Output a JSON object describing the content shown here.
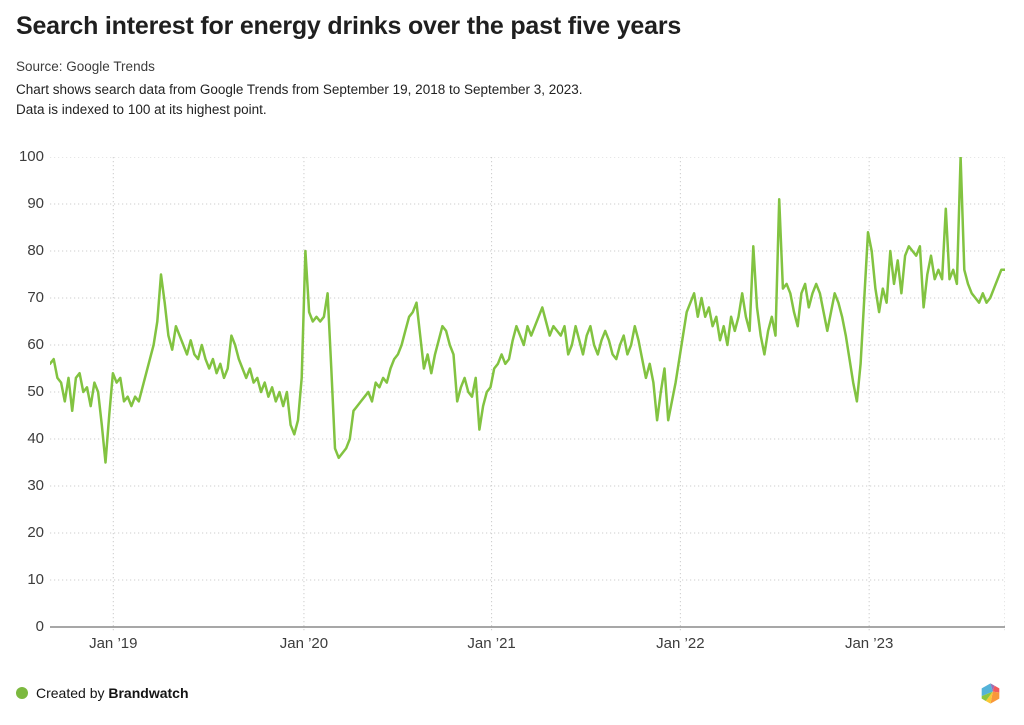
{
  "header": {
    "title": "Search interest for energy drinks over the past five years",
    "source": "Source: Google Trends",
    "description_line1": "Chart shows search data from Google Trends from September 19, 2018 to September 3, 2023.",
    "description_line2": "Data is indexed to 100 at its highest point."
  },
  "footer": {
    "created_by_prefix": "Created by",
    "brand": "Brandwatch",
    "dot_color": "#7cb93f",
    "logo_colors": {
      "blue": "#54b3d9",
      "purple": "#9a6fb5",
      "red": "#f0595f",
      "orange": "#f9983a",
      "yellow": "#fbc835",
      "green": "#8dc63f"
    }
  },
  "chart_data": {
    "type": "line",
    "title": "Search interest for energy drinks over the past five years",
    "series_name": "Search interest (indexed to 100 at highest point)",
    "frequency": "weekly",
    "date_range_start": "September 19, 2018",
    "date_range_end": "September 3, 2023",
    "xlabel": "",
    "ylabel": "",
    "ylim": [
      0,
      100
    ],
    "grid": "dotted",
    "legend": "none",
    "line_color": "#82c341",
    "grid_color": "#cccccc",
    "axis_color": "#8a8a8a",
    "yticks": [
      0,
      10,
      20,
      30,
      40,
      50,
      60,
      70,
      80,
      90,
      100
    ],
    "xticks": [
      {
        "label": "Jan ’19",
        "week": 17.1
      },
      {
        "label": "Jan ’20",
        "week": 68.6
      },
      {
        "label": "Jan ’21",
        "week": 119.3
      },
      {
        "label": "Jan ’22",
        "week": 170.3
      },
      {
        "label": "Jan ’23",
        "week": 221.3
      },
      {
        "label": "",
        "week": 258
      }
    ],
    "values": [
      56,
      57,
      53,
      52,
      48,
      53,
      46,
      53,
      54,
      50,
      51,
      47,
      52,
      50,
      43,
      35,
      45,
      54,
      52,
      53,
      48,
      49,
      47,
      49,
      48,
      51,
      54,
      57,
      60,
      65,
      75,
      69,
      62,
      59,
      64,
      62,
      60,
      58,
      61,
      58,
      57,
      60,
      57,
      55,
      57,
      54,
      56,
      53,
      55,
      62,
      60,
      57,
      55,
      53,
      55,
      52,
      53,
      50,
      52,
      49,
      51,
      48,
      50,
      47,
      50,
      43,
      41,
      44,
      53,
      80,
      67,
      65,
      66,
      65,
      66,
      71,
      55,
      38,
      36,
      37,
      38,
      40,
      46,
      47,
      48,
      49,
      50,
      48,
      52,
      51,
      53,
      52,
      55,
      57,
      58,
      60,
      63,
      66,
      67,
      69,
      62,
      55,
      58,
      54,
      58,
      61,
      64,
      63,
      60,
      58,
      48,
      51,
      53,
      50,
      49,
      53,
      42,
      47,
      50,
      51,
      55,
      56,
      58,
      56,
      57,
      61,
      64,
      62,
      60,
      64,
      62,
      64,
      66,
      68,
      65,
      62,
      64,
      63,
      62,
      64,
      58,
      60,
      64,
      61,
      58,
      62,
      64,
      60,
      58,
      61,
      63,
      61,
      58,
      57,
      60,
      62,
      58,
      60,
      64,
      61,
      57,
      53,
      56,
      52,
      44,
      50,
      55,
      44,
      48,
      52,
      57,
      62,
      67,
      69,
      71,
      66,
      70,
      66,
      68,
      64,
      66,
      61,
      64,
      60,
      66,
      63,
      66,
      71,
      66,
      63,
      81,
      68,
      62,
      58,
      63,
      66,
      62,
      91,
      72,
      73,
      71,
      67,
      64,
      71,
      73,
      68,
      71,
      73,
      71,
      67,
      63,
      67,
      71,
      69,
      66,
      62,
      57,
      52,
      48,
      56,
      70,
      84,
      80,
      72,
      67,
      72,
      69,
      80,
      73,
      78,
      71,
      79,
      81,
      80,
      79,
      81,
      68,
      75,
      79,
      74,
      76,
      74,
      89,
      74,
      76,
      73,
      100,
      76,
      73,
      71,
      70,
      69,
      71,
      69,
      70,
      72,
      74,
      76,
      76
    ]
  }
}
